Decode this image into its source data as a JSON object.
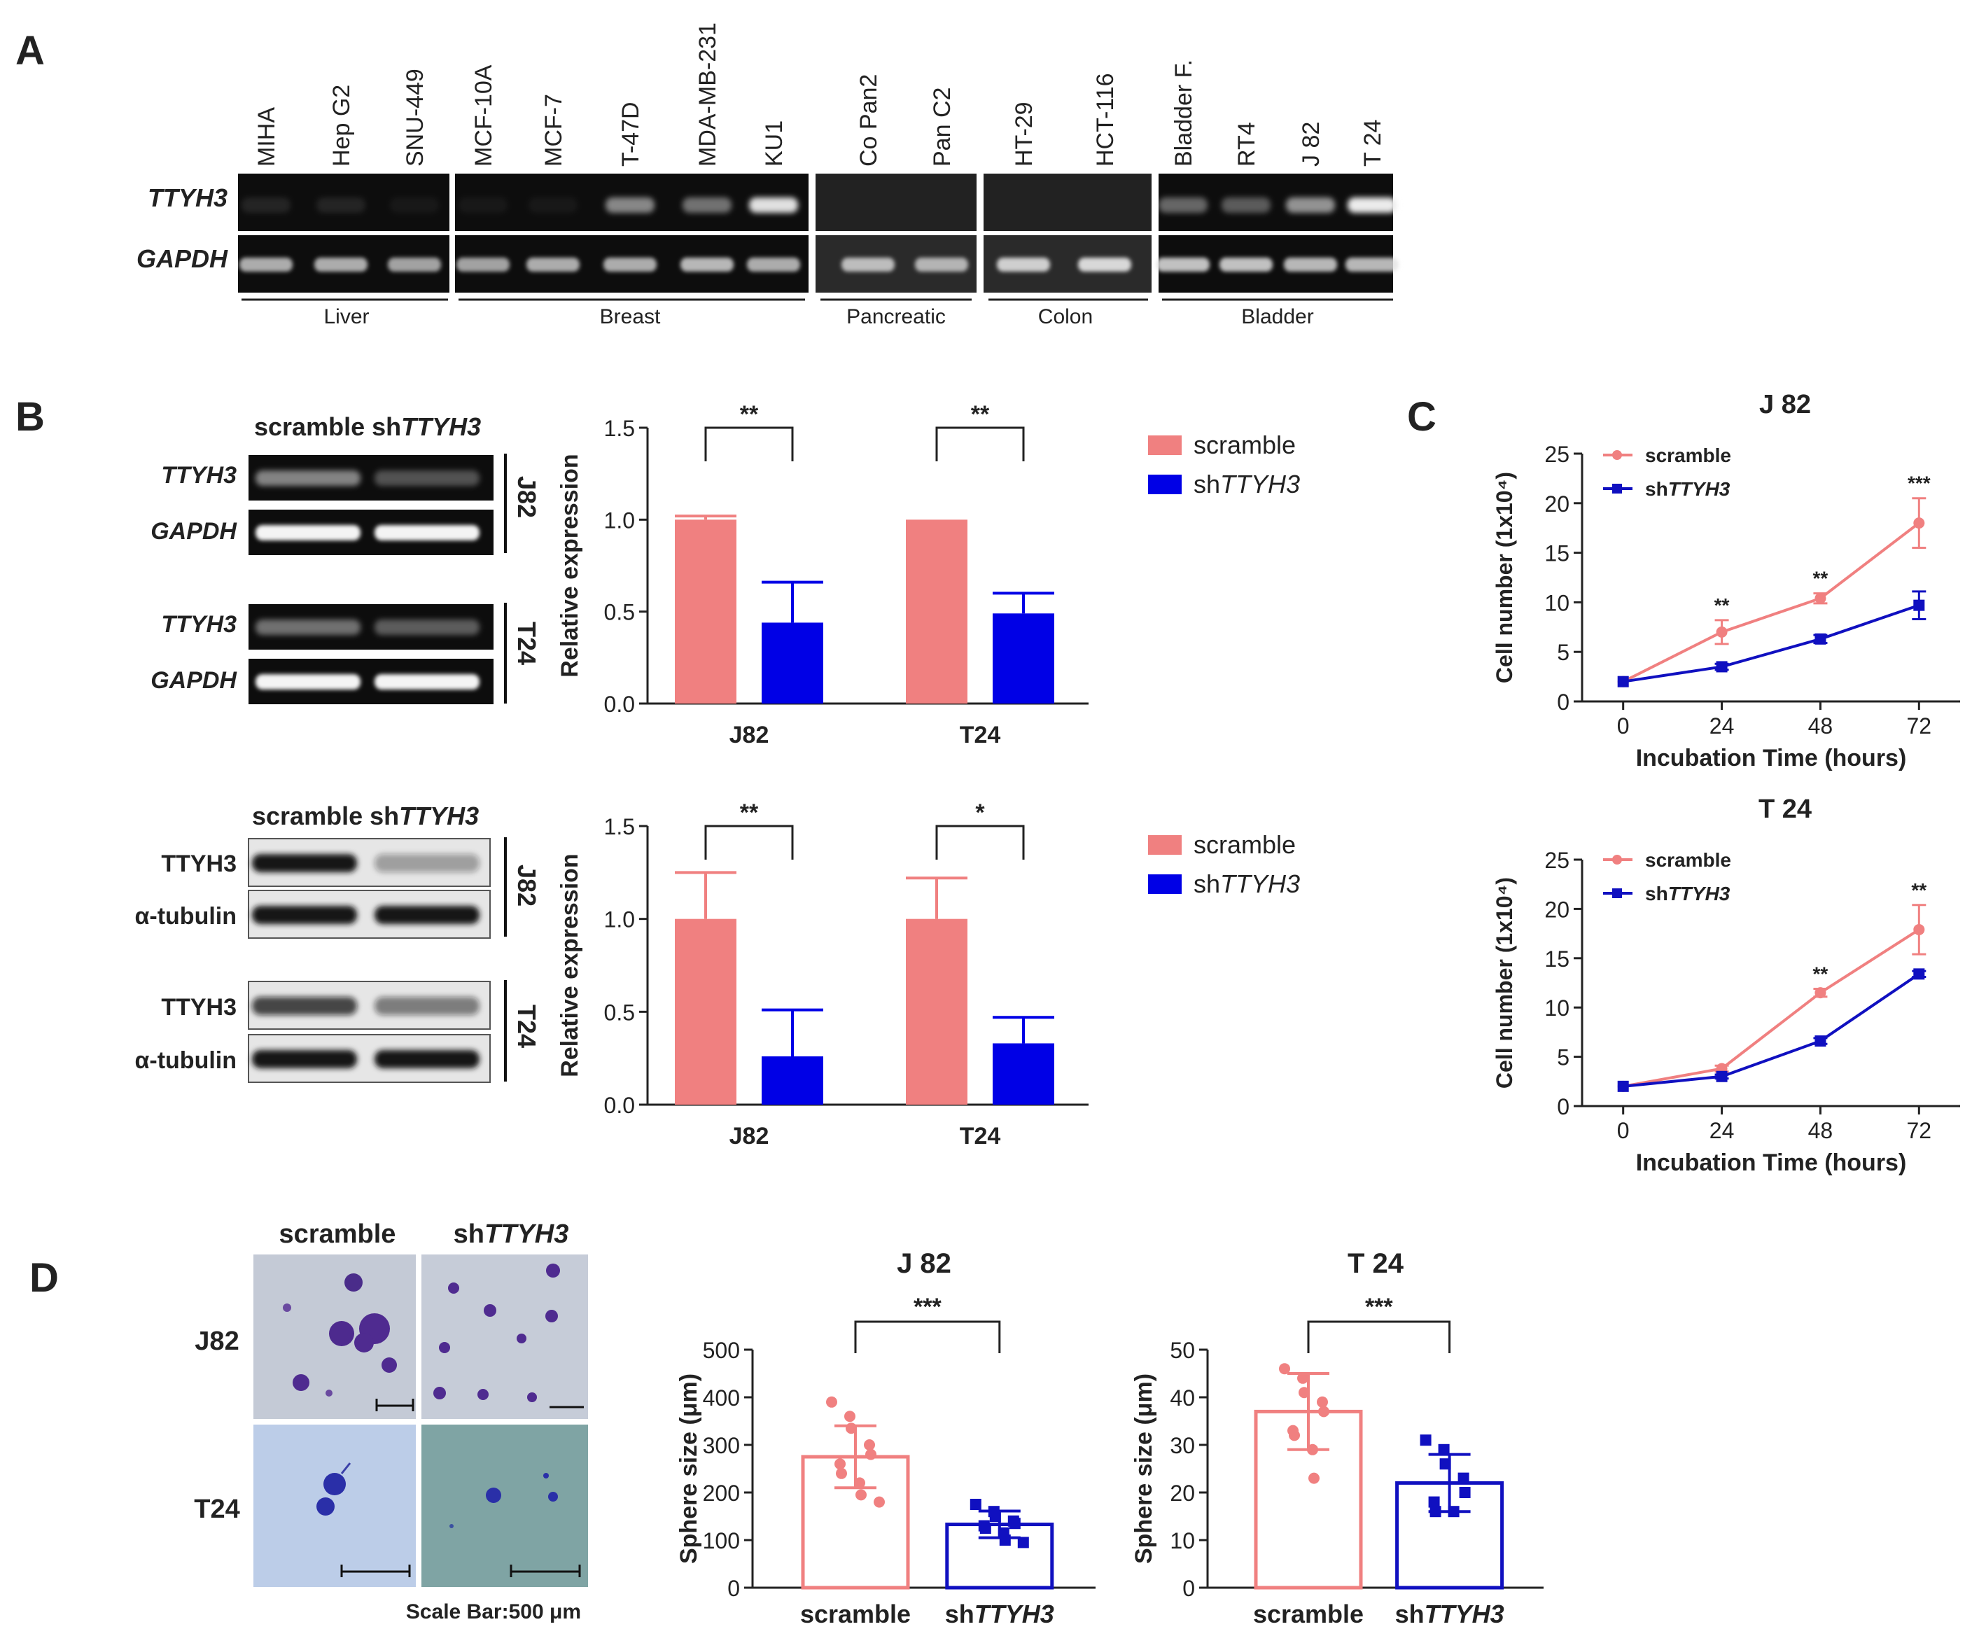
{
  "panels": {
    "a": "A",
    "b": "B",
    "c": "C",
    "d": "D"
  },
  "colors": {
    "scramble": "#F08080",
    "sh": "#0000E6",
    "sh_line": "#1010C0",
    "gel_bg": "#0d0d0d",
    "axis": "#222222"
  },
  "panel_a": {
    "row_labels": [
      "TTYH3",
      "GAPDH"
    ],
    "lanes": [
      "MIHA",
      "Hep G2",
      "SNU-449",
      "MCF-10A",
      "MCF-7",
      "T-47D",
      "MDA-MB-231",
      "KU1",
      "Co Pan2",
      "Pan C2",
      "HT-29",
      "HCT-116",
      "Bladder F.",
      "RT4",
      "J 82",
      "T 24"
    ],
    "groups": [
      "Liver",
      "Breast",
      "Pancreatic",
      "Colon",
      "Bladder"
    ]
  },
  "panel_b": {
    "gel_header_a": "scramble sh",
    "gel_header_b": "TTYH3",
    "rna_labels": [
      "TTYH3",
      "GAPDH",
      "TTYH3",
      "GAPDH"
    ],
    "protein_labels": [
      "TTYH3",
      "α-tubulin",
      "TTYH3",
      "α-tubulin"
    ],
    "side_labels": [
      "J82",
      "T24"
    ],
    "legend": [
      "scramble",
      "sh",
      "TTYH3"
    ]
  },
  "panel_d": {
    "col_headers": [
      "scramble",
      "sh",
      "TTYH3"
    ],
    "row_labels": [
      "J82",
      "T24"
    ],
    "scale_bar": "Scale Bar:500 μm"
  },
  "chart_data": [
    {
      "id": "b_rna",
      "type": "bar",
      "categories": [
        "J82",
        "T24"
      ],
      "series": [
        {
          "name": "scramble",
          "values": [
            1.0,
            1.0
          ],
          "errors": [
            0.02,
            0.0
          ]
        },
        {
          "name": "shTTYH3",
          "values": [
            0.44,
            0.49
          ],
          "errors": [
            0.22,
            0.11
          ]
        }
      ],
      "ylabel": "Relative expression",
      "ylim": [
        0,
        1.5
      ],
      "yticks": [
        "0.0",
        "0.5",
        "1.0",
        "1.5"
      ],
      "significance": [
        "**",
        "**"
      ]
    },
    {
      "id": "b_prot",
      "type": "bar",
      "categories": [
        "J82",
        "T24"
      ],
      "series": [
        {
          "name": "scramble",
          "values": [
            1.0,
            1.0
          ],
          "errors": [
            0.25,
            0.22
          ]
        },
        {
          "name": "shTTYH3",
          "values": [
            0.26,
            0.33
          ],
          "errors": [
            0.25,
            0.14
          ]
        }
      ],
      "ylabel": "Relative expression",
      "ylim": [
        0,
        1.5
      ],
      "yticks": [
        "0.0",
        "0.5",
        "1.0",
        "1.5"
      ],
      "significance": [
        "**",
        "*"
      ]
    },
    {
      "id": "c_j82",
      "type": "line",
      "title": "J 82",
      "x": [
        0,
        24,
        48,
        72
      ],
      "series": [
        {
          "name": "scramble",
          "values": [
            2,
            7,
            10.4,
            18
          ],
          "errors": [
            0,
            1.2,
            0.5,
            2.5
          ]
        },
        {
          "name": "shTTYH3",
          "values": [
            2,
            3.5,
            6.3,
            9.7
          ],
          "errors": [
            0,
            0.3,
            0.4,
            1.4
          ]
        }
      ],
      "xlabel": "Incubation Time (hours)",
      "ylabel": "Cell number (1x10⁴)",
      "ylim": [
        0,
        25
      ],
      "yticks": [
        "0",
        "5",
        "10",
        "15",
        "20",
        "25"
      ],
      "xticks": [
        "0",
        "24",
        "48",
        "72"
      ],
      "significance": [
        "",
        "**",
        "**",
        "***"
      ],
      "legend": [
        "scramble",
        "sh",
        "TTYH3"
      ]
    },
    {
      "id": "c_t24",
      "type": "line",
      "title": "T 24",
      "x": [
        0,
        24,
        48,
        72
      ],
      "series": [
        {
          "name": "scramble",
          "values": [
            2,
            3.8,
            11.5,
            17.9
          ],
          "errors": [
            0,
            0.3,
            0.4,
            2.5
          ]
        },
        {
          "name": "shTTYH3",
          "values": [
            2,
            3.0,
            6.6,
            13.4
          ],
          "errors": [
            0,
            0.2,
            0.3,
            0.3
          ]
        }
      ],
      "xlabel": "Incubation Time (hours)",
      "ylabel": "Cell number (1x10⁴)",
      "ylim": [
        0,
        25
      ],
      "yticks": [
        "0",
        "5",
        "10",
        "15",
        "20",
        "25"
      ],
      "xticks": [
        "0",
        "24",
        "48",
        "72"
      ],
      "significance": [
        "",
        "",
        "**",
        "**"
      ],
      "legend": [
        "scramble",
        "sh",
        "TTYH3"
      ]
    },
    {
      "id": "d_j82",
      "type": "bar",
      "title": "J 82",
      "categories": [
        "scramble",
        "shTTYH3"
      ],
      "cat_labels": [
        [
          "scramble",
          ""
        ],
        [
          "sh",
          "TTYH3"
        ]
      ],
      "values": [
        275,
        133
      ],
      "errors": [
        65,
        28
      ],
      "points": [
        [
          390,
          360,
          335,
          300,
          280,
          260,
          240,
          220,
          195,
          180
        ],
        [
          175,
          160,
          150,
          140,
          135,
          130,
          125,
          115,
          100,
          95
        ]
      ],
      "ylabel": "Sphere size (μm)",
      "ylim": [
        0,
        500
      ],
      "yticks": [
        "0",
        "100",
        "200",
        "300",
        "400",
        "500"
      ],
      "significance": "***"
    },
    {
      "id": "d_t24",
      "type": "bar",
      "title": "T 24",
      "categories": [
        "scramble",
        "shTTYH3"
      ],
      "cat_labels": [
        [
          "scramble",
          ""
        ],
        [
          "sh",
          "TTYH3"
        ]
      ],
      "values": [
        37,
        22
      ],
      "errors": [
        8,
        6
      ],
      "points": [
        [
          46,
          44,
          41,
          39,
          37,
          33,
          32,
          29,
          23
        ],
        [
          31,
          29,
          26,
          23,
          20,
          18,
          16,
          16
        ]
      ],
      "ylabel": "Sphere size (μm)",
      "ylim": [
        0,
        50
      ],
      "yticks": [
        "0",
        "10",
        "20",
        "30",
        "40",
        "50"
      ],
      "significance": "***"
    }
  ]
}
